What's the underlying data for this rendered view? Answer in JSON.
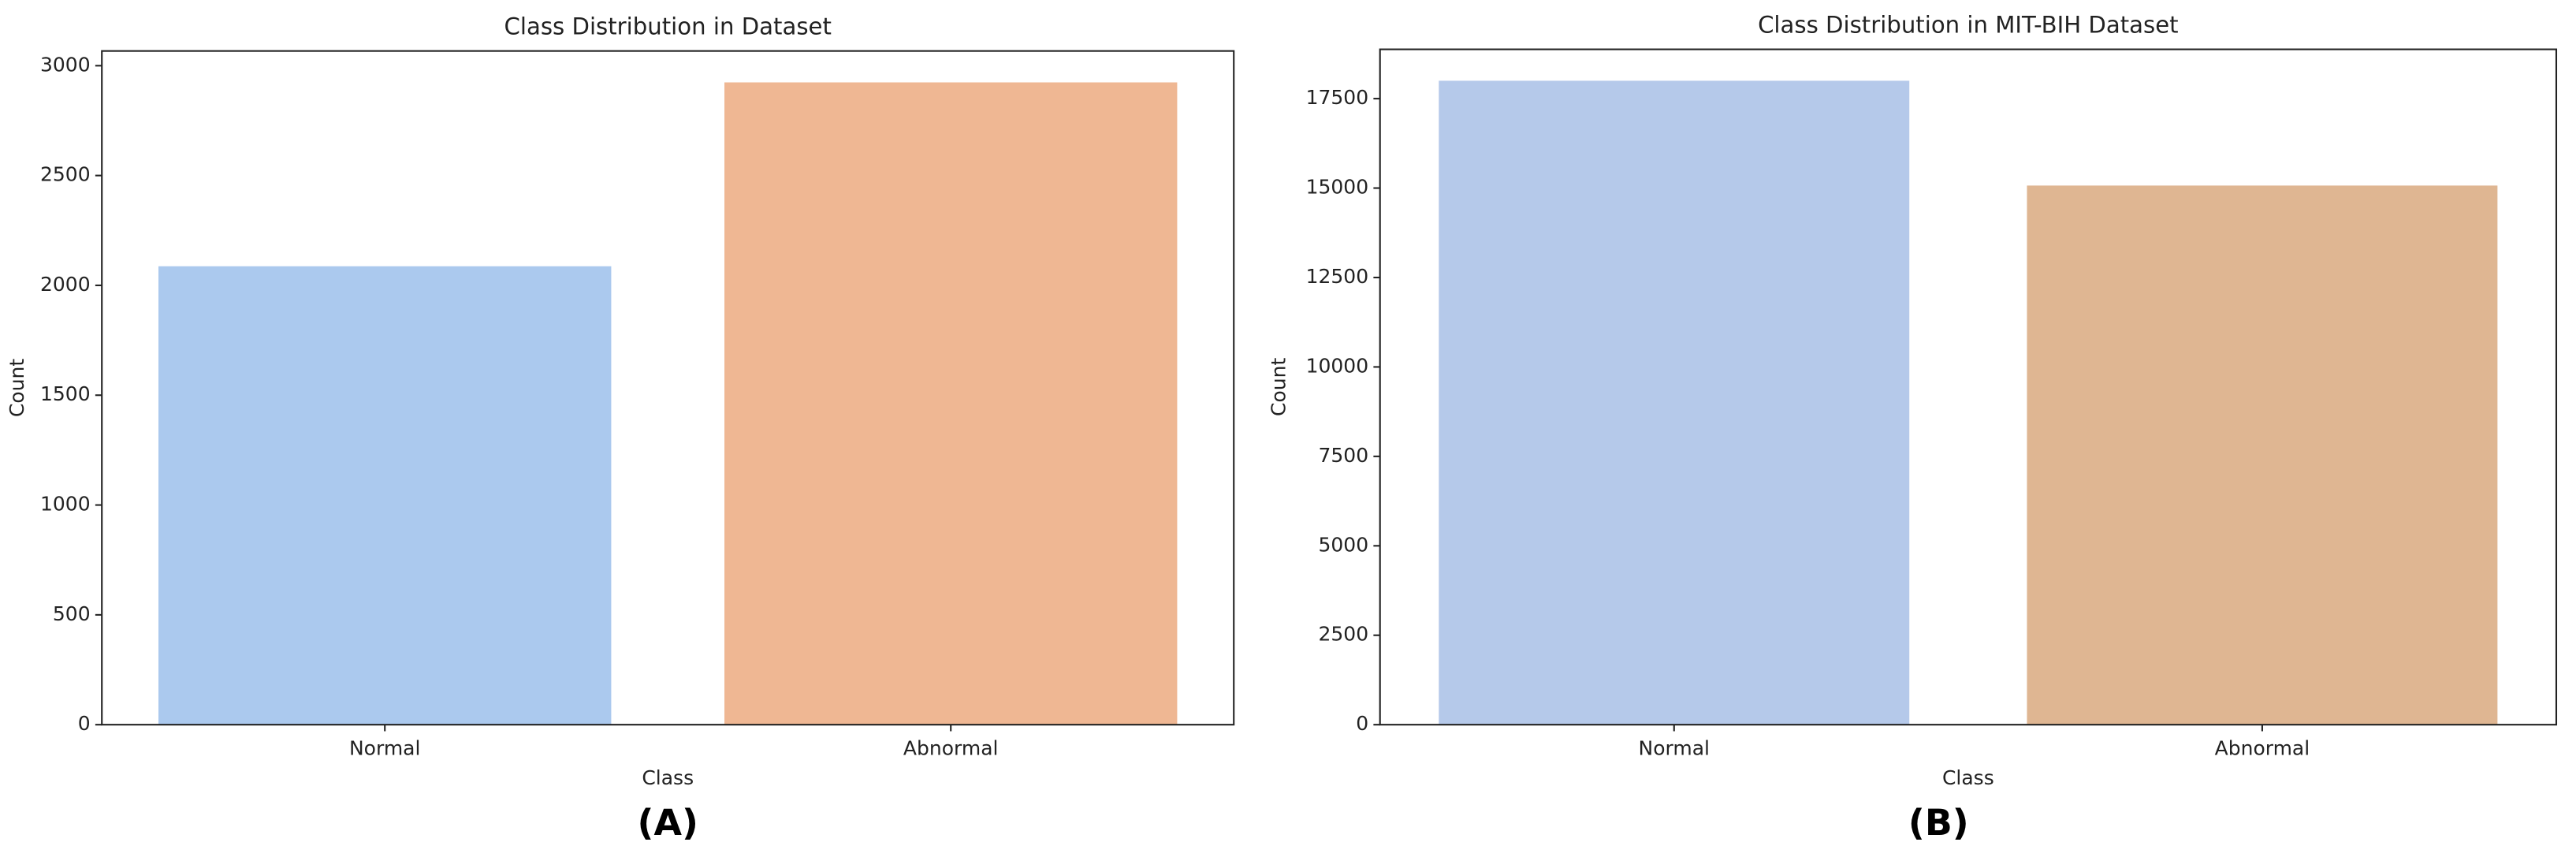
{
  "chart_data": [
    {
      "type": "bar",
      "title": "Class Distribution in Dataset",
      "xlabel": "Class",
      "ylabel": "Count",
      "panel_label": "(A)",
      "categories": [
        "Normal",
        "Abnormal"
      ],
      "values": [
        2087,
        2924
      ],
      "colors": [
        "#abc9ee",
        "#efb793"
      ],
      "ylim": [
        0,
        3067
      ],
      "yticks": [
        0,
        500,
        1000,
        1500,
        2000,
        2500,
        3000
      ],
      "grid": false
    },
    {
      "type": "bar",
      "title": "Class Distribution in MIT-BIH Dataset",
      "xlabel": "Class",
      "ylabel": "Count",
      "panel_label": "(B)",
      "categories": [
        "Normal",
        "Abnormal"
      ],
      "values": [
        18000,
        15070
      ],
      "colors": [
        "#b5c9ea",
        "#dfb692"
      ],
      "ylim": [
        0,
        18878
      ],
      "yticks": [
        0,
        2500,
        5000,
        7500,
        10000,
        12500,
        15000,
        17500
      ],
      "grid": false
    }
  ]
}
